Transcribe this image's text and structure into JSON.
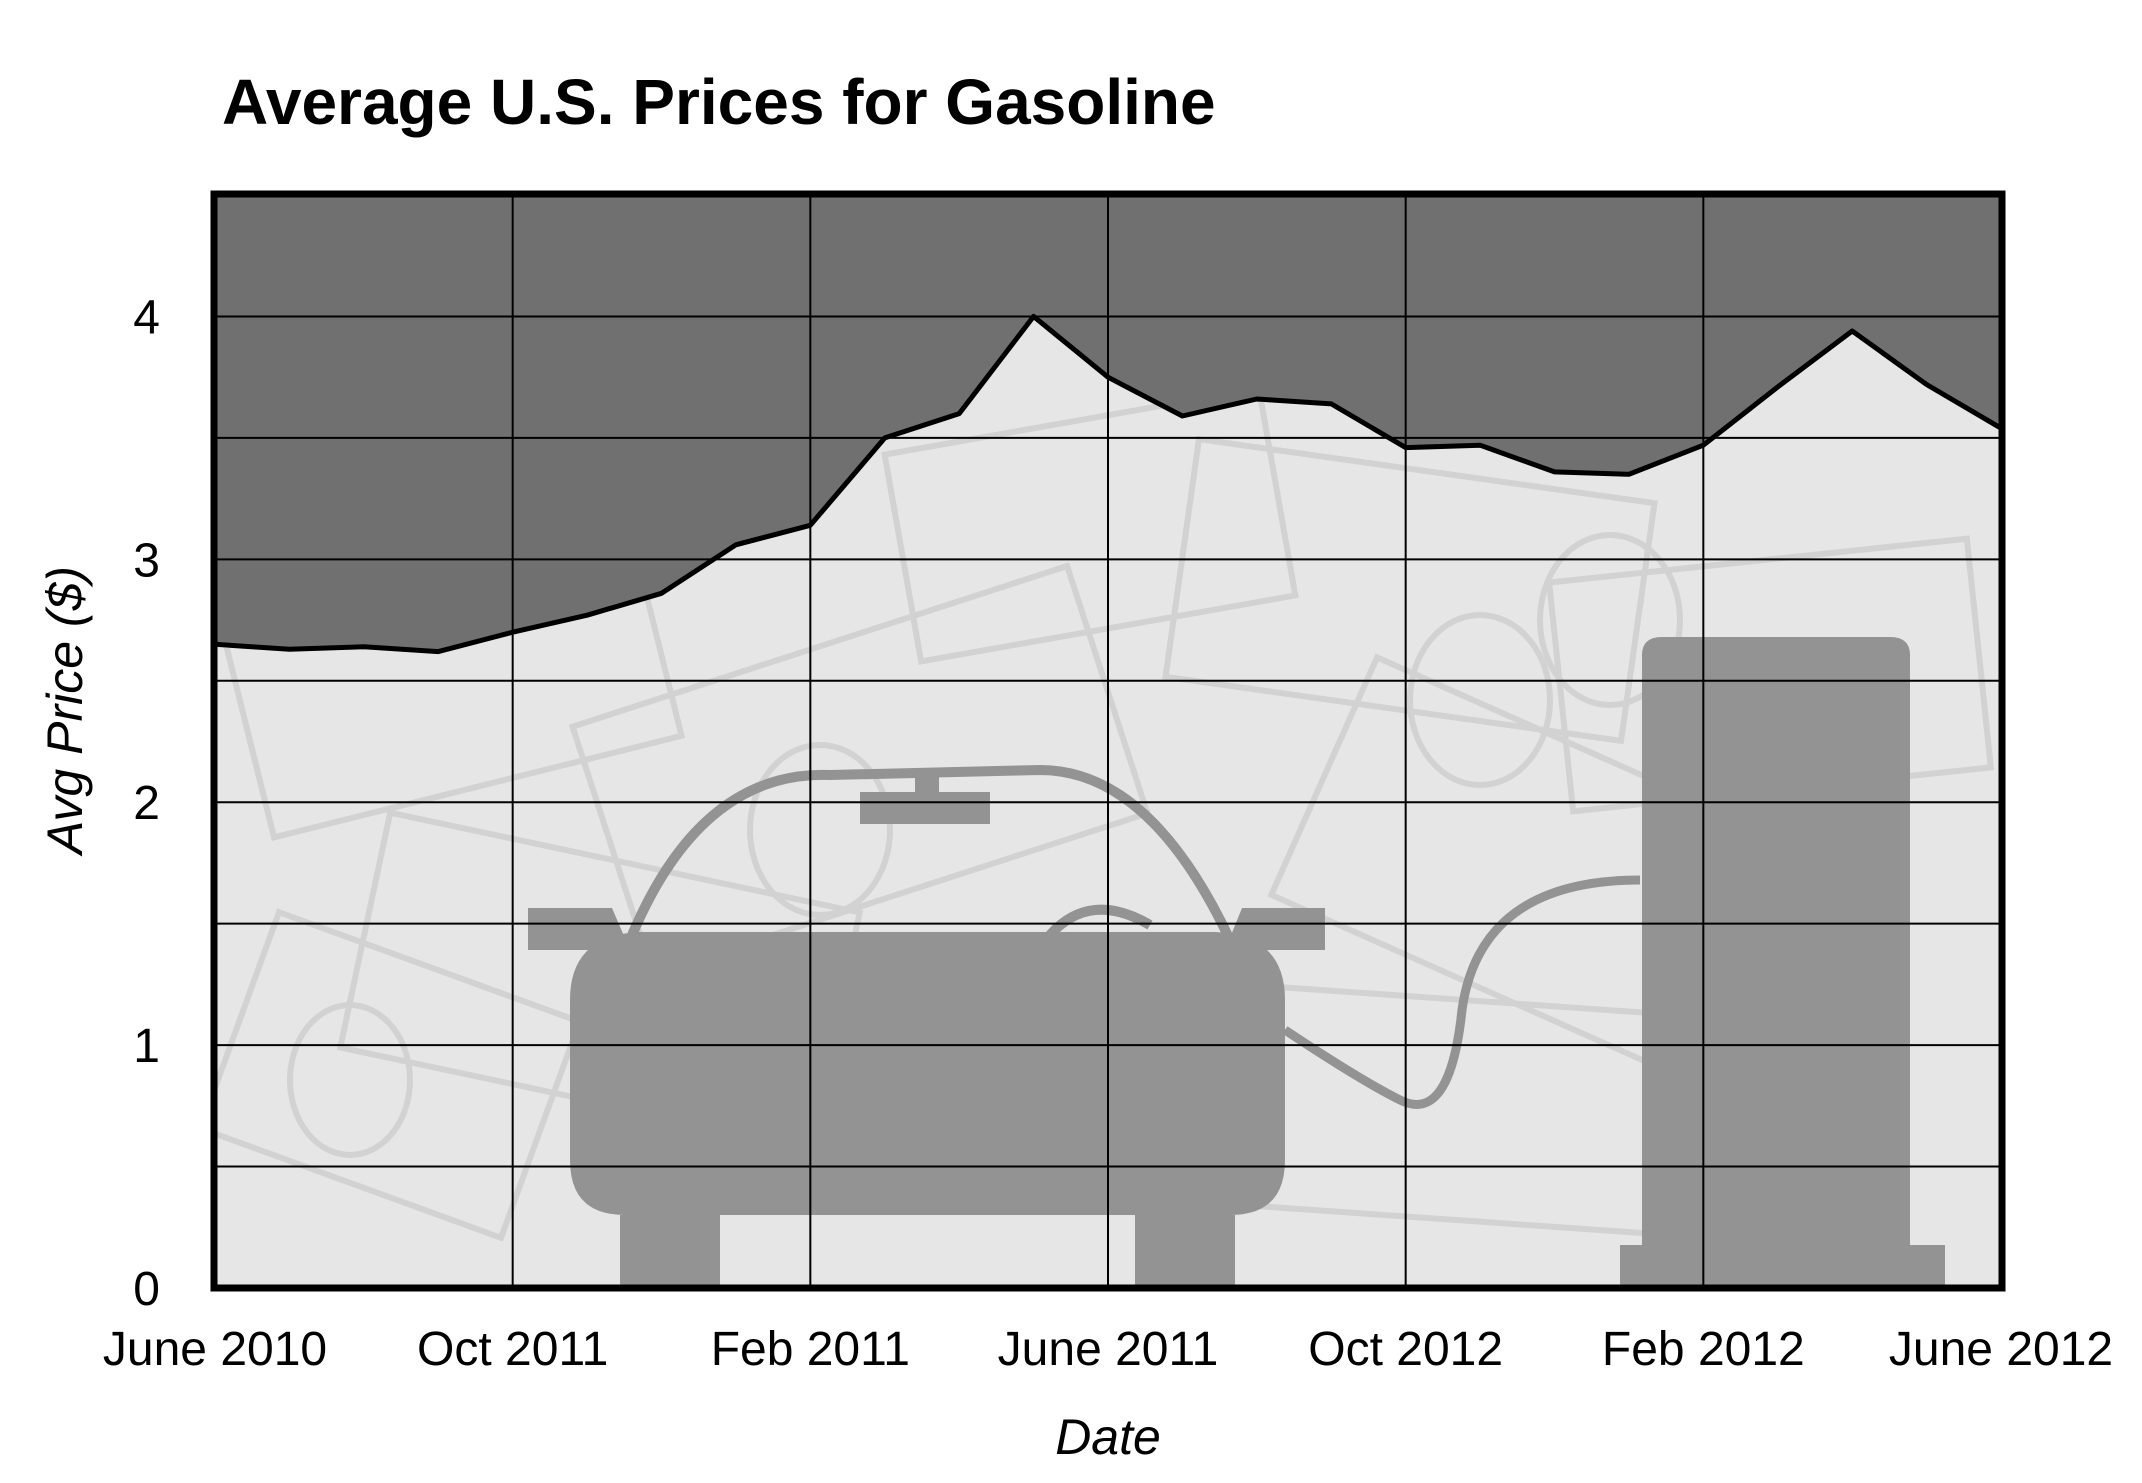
{
  "chart_data": {
    "type": "area",
    "title": "Average U.S. Prices for Gasoline",
    "xlabel": "Date",
    "ylabel": "Avg Price ($)",
    "x_tick_labels": [
      "June 2010",
      "Oct 2011",
      "Feb 2011",
      "June 2011",
      "Oct 2012",
      "Feb 2012",
      "June 2012"
    ],
    "y_ticks": [
      0,
      1,
      2,
      3,
      4
    ],
    "ylim": [
      0,
      4.5
    ],
    "grid": true,
    "legend": "none",
    "series": [
      {
        "values": [
          2.65,
          2.63,
          2.64,
          2.62,
          2.7,
          2.77,
          2.86,
          3.06,
          3.14,
          3.5,
          3.6,
          4.0,
          3.75,
          3.59,
          3.66,
          3.64,
          3.46,
          3.47,
          3.36,
          3.35,
          3.47,
          3.71,
          3.94,
          3.72,
          3.54
        ]
      }
    ],
    "x": [
      0,
      0.25,
      0.5,
      0.75,
      1,
      1.25,
      1.5,
      1.75,
      2,
      2.25,
      2.5,
      2.75,
      3,
      3.25,
      3.5,
      3.75,
      4,
      4.25,
      4.5,
      4.75,
      5,
      5.25,
      5.5,
      5.75,
      6
    ],
    "colors": {
      "above_line": "#707070",
      "below_line": "#e6e6e6",
      "money_texture": "#d2d2d2",
      "silhouette": "#939393",
      "line": "#000000"
    },
    "background_image": "dollar-bills-with-car-and-gas-pump-silhouette"
  }
}
